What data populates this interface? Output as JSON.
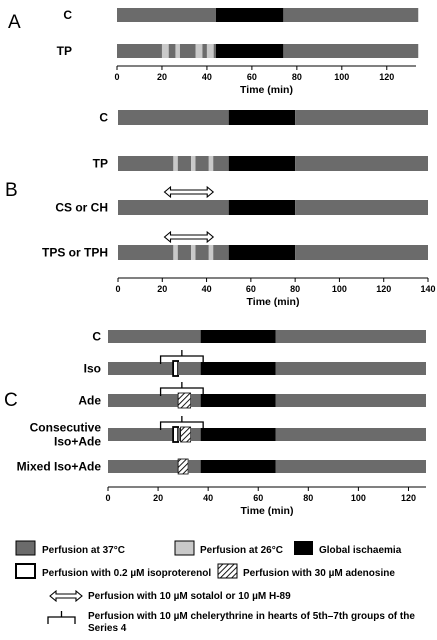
{
  "colors": {
    "perf37": "#6b6b6b",
    "perf26": "#c9c9c9",
    "ischaemia": "#000000",
    "isoproterenol": "#ffffff",
    "adenosine": "hatched"
  },
  "panels": [
    {
      "letter": "A",
      "xmax": 133,
      "ticks": [
        0,
        20,
        40,
        60,
        80,
        100,
        120
      ],
      "axis_label": "Time (min)",
      "rows": [
        {
          "label": "C",
          "segments": [
            {
              "from": 0,
              "to": 44,
              "kind": "perf37"
            },
            {
              "from": 44,
              "to": 74,
              "kind": "ischaemia"
            },
            {
              "from": 74,
              "to": 134,
              "kind": "perf37"
            }
          ]
        },
        {
          "label": "TP",
          "segments": [
            {
              "from": 0,
              "to": 20,
              "kind": "perf37"
            },
            {
              "from": 20,
              "to": 23,
              "kind": "perf26"
            },
            {
              "from": 23,
              "to": 26,
              "kind": "perf37"
            },
            {
              "from": 26,
              "to": 28,
              "kind": "perf26"
            },
            {
              "from": 28,
              "to": 35,
              "kind": "perf37"
            },
            {
              "from": 35,
              "to": 38,
              "kind": "perf26"
            },
            {
              "from": 38,
              "to": 40,
              "kind": "perf37"
            },
            {
              "from": 40,
              "to": 43,
              "kind": "perf26"
            },
            {
              "from": 43,
              "to": 44,
              "kind": "perf37"
            },
            {
              "from": 44,
              "to": 74,
              "kind": "ischaemia"
            },
            {
              "from": 74,
              "to": 134,
              "kind": "perf37"
            }
          ]
        }
      ]
    },
    {
      "letter": "B",
      "xmax": 140,
      "ticks": [
        0,
        20,
        40,
        60,
        80,
        100,
        120,
        140
      ],
      "axis_label": "Time (min)",
      "rows": [
        {
          "label": "C",
          "segments": [
            {
              "from": 0,
              "to": 50,
              "kind": "perf37"
            },
            {
              "from": 50,
              "to": 80,
              "kind": "ischaemia"
            },
            {
              "from": 80,
              "to": 140,
              "kind": "perf37"
            }
          ]
        },
        {
          "label": "TP",
          "segments": [
            {
              "from": 0,
              "to": 25,
              "kind": "perf37"
            },
            {
              "from": 25,
              "to": 27,
              "kind": "perf26"
            },
            {
              "from": 27,
              "to": 33,
              "kind": "perf37"
            },
            {
              "from": 33,
              "to": 35,
              "kind": "perf26"
            },
            {
              "from": 35,
              "to": 41,
              "kind": "perf37"
            },
            {
              "from": 41,
              "to": 43,
              "kind": "perf26"
            },
            {
              "from": 43,
              "to": 50,
              "kind": "perf37"
            },
            {
              "from": 50,
              "to": 80,
              "kind": "ischaemia"
            },
            {
              "from": 80,
              "to": 140,
              "kind": "perf37"
            }
          ]
        },
        {
          "label": "CS or CH",
          "arrow": [
            21,
            43
          ],
          "segments": [
            {
              "from": 0,
              "to": 50,
              "kind": "perf37"
            },
            {
              "from": 50,
              "to": 80,
              "kind": "ischaemia"
            },
            {
              "from": 80,
              "to": 140,
              "kind": "perf37"
            }
          ]
        },
        {
          "label": "TPS or TPH",
          "arrow": [
            21,
            43
          ],
          "segments": [
            {
              "from": 0,
              "to": 25,
              "kind": "perf37"
            },
            {
              "from": 25,
              "to": 27,
              "kind": "perf26"
            },
            {
              "from": 27,
              "to": 33,
              "kind": "perf37"
            },
            {
              "from": 33,
              "to": 35,
              "kind": "perf26"
            },
            {
              "from": 35,
              "to": 41,
              "kind": "perf37"
            },
            {
              "from": 41,
              "to": 43,
              "kind": "perf26"
            },
            {
              "from": 43,
              "to": 50,
              "kind": "perf37"
            },
            {
              "from": 50,
              "to": 80,
              "kind": "ischaemia"
            },
            {
              "from": 80,
              "to": 140,
              "kind": "perf37"
            }
          ]
        }
      ]
    },
    {
      "letter": "C",
      "xmax": 127,
      "ticks": [
        0,
        20,
        40,
        60,
        80,
        100,
        120
      ],
      "axis_label": "Time (min)",
      "rows": [
        {
          "label": "C",
          "segments": [
            {
              "from": 0,
              "to": 37,
              "kind": "perf37"
            },
            {
              "from": 37,
              "to": 67,
              "kind": "ischaemia"
            },
            {
              "from": 67,
              "to": 127,
              "kind": "perf37"
            }
          ]
        },
        {
          "label": "Iso",
          "bracket": [
            21,
            38
          ],
          "segments": [
            {
              "from": 0,
              "to": 26,
              "kind": "perf37"
            },
            {
              "from": 26,
              "to": 28,
              "kind": "isoproterenol"
            },
            {
              "from": 28,
              "to": 37,
              "kind": "perf37"
            },
            {
              "from": 37,
              "to": 67,
              "kind": "ischaemia"
            },
            {
              "from": 67,
              "to": 127,
              "kind": "perf37"
            }
          ]
        },
        {
          "label": "Ade",
          "bracket": [
            21,
            38
          ],
          "segments": [
            {
              "from": 0,
              "to": 28,
              "kind": "perf37"
            },
            {
              "from": 28,
              "to": 33,
              "kind": "adenosine"
            },
            {
              "from": 33,
              "to": 37,
              "kind": "perf37"
            },
            {
              "from": 37,
              "to": 67,
              "kind": "ischaemia"
            },
            {
              "from": 67,
              "to": 127,
              "kind": "perf37"
            }
          ]
        },
        {
          "label": "Consecutive\nIso+Ade",
          "bracket": [
            21,
            38
          ],
          "segments": [
            {
              "from": 0,
              "to": 26,
              "kind": "perf37"
            },
            {
              "from": 26,
              "to": 28,
              "kind": "isoproterenol"
            },
            {
              "from": 28,
              "to": 29,
              "kind": "perf37"
            },
            {
              "from": 29,
              "to": 33,
              "kind": "adenosine"
            },
            {
              "from": 33,
              "to": 37,
              "kind": "perf37"
            },
            {
              "from": 37,
              "to": 67,
              "kind": "ischaemia"
            },
            {
              "from": 67,
              "to": 127,
              "kind": "perf37"
            }
          ]
        },
        {
          "label": "Mixed Iso+Ade",
          "segments": [
            {
              "from": 0,
              "to": 28,
              "kind": "perf37"
            },
            {
              "from": 28,
              "to": 32,
              "kind": "adenosine"
            },
            {
              "from": 32,
              "to": 37,
              "kind": "perf37"
            },
            {
              "from": 37,
              "to": 67,
              "kind": "ischaemia"
            },
            {
              "from": 67,
              "to": 127,
              "kind": "perf37"
            }
          ]
        }
      ]
    }
  ],
  "legend": {
    "perf37": "Perfusion at 37°C",
    "perf26": "Perfusion at 26°C",
    "ischaemia": "Global ischaemia",
    "isoproterenol": "Perfusion with 0.2 µM isoproterenol",
    "adenosine": "Perfusion with 30 µM adenosine",
    "arrow": "Perfusion with 10 µM sotalol or 10 µM H-89",
    "bracket_line1": "Perfusion with 10 µM chelerythrine in hearts of 5th–7th groups of the",
    "bracket_line2": "Series 4"
  }
}
